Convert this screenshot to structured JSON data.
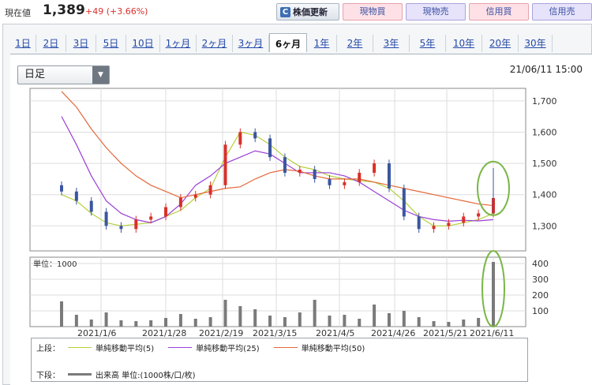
{
  "quote": {
    "label": "現在値",
    "price": "1,389",
    "change": "+49 (+3.66%)"
  },
  "buttons": {
    "refresh": "株価更新",
    "spot_buy": "現物買",
    "spot_sell": "現物売",
    "margin_buy": "信用買",
    "margin_sell": "信用売"
  },
  "period_tabs": [
    "1日",
    "2日",
    "3日",
    "5日",
    "10日",
    "1ヶ月",
    "2ヶ月",
    "3ヶ月",
    "6ヶ月",
    "1年",
    "2年",
    "3年",
    "5年",
    "10年",
    "20年",
    "30年"
  ],
  "active_tab": "6ヶ月",
  "interval_select": {
    "value": "日足"
  },
  "datetime": "21/06/11 15:00",
  "colors": {
    "up": "#d8302a",
    "down": "#3a56a0",
    "ma5": "#b6cf3c",
    "ma25": "#9b3fd6",
    "ma50": "#e4683a",
    "volume": "#7a7a7a",
    "highlight": "#7ab648"
  },
  "chart_data": [
    {
      "type": "candlestick",
      "y_ticks": [
        "1,700",
        "1,600",
        "1,500",
        "1,400",
        "1,300"
      ],
      "ylim": [
        1220,
        1740
      ],
      "x_ticks": [
        "2021/1/6",
        "2021/1/28",
        "2021/2/19",
        "2021/3/15",
        "2021/4/5",
        "2021/4/26",
        "2021/5/21",
        "2021/6/11"
      ],
      "series": [
        {
          "name": "単純移動平均(5)",
          "values": [
            1400,
            1380,
            1340,
            1310,
            1300,
            1305,
            1310,
            1330,
            1350,
            1390,
            1420,
            1520,
            1600,
            1590,
            1560,
            1520,
            1490,
            1480,
            1460,
            1450,
            1445,
            1440,
            1420,
            1380,
            1330,
            1300,
            1300,
            1310,
            1320,
            1340
          ]
        },
        {
          "name": "単純移動平均(25)",
          "values": [
            1650,
            1560,
            1460,
            1380,
            1340,
            1320,
            1310,
            1330,
            1370,
            1430,
            1460,
            1500,
            1520,
            1540,
            1530,
            1500,
            1470,
            1470,
            1470,
            1460,
            1440,
            1410,
            1380,
            1350,
            1330,
            1320,
            1315,
            1318,
            1316,
            1320
          ]
        },
        {
          "name": "単純移動平均(50)",
          "values": [
            1730,
            1680,
            1610,
            1550,
            1500,
            1460,
            1430,
            1410,
            1390,
            1400,
            1410,
            1420,
            1425,
            1450,
            1470,
            1480,
            1475,
            1460,
            1450,
            1450,
            1450,
            1440,
            1430,
            1420,
            1410,
            1400,
            1390,
            1380,
            1370,
            1365
          ]
        }
      ],
      "candles_close": [
        1410,
        1380,
        1345,
        1300,
        1290,
        1320,
        1330,
        1360,
        1390,
        1400,
        1430,
        1560,
        1600,
        1580,
        1520,
        1470,
        1480,
        1450,
        1430,
        1440,
        1470,
        1500,
        1420,
        1330,
        1290,
        1300,
        1310,
        1330,
        1340,
        1389
      ],
      "last_candle": {
        "open": 1340,
        "high": 1485,
        "low": 1338,
        "close": 1389
      }
    },
    {
      "type": "bar",
      "title": "単位：1000",
      "y_ticks": [
        "400",
        "300",
        "200",
        "100"
      ],
      "ylim": [
        0,
        440
      ],
      "values": [
        160,
        75,
        45,
        90,
        40,
        35,
        40,
        55,
        80,
        50,
        60,
        170,
        130,
        110,
        70,
        60,
        90,
        170,
        70,
        75,
        50,
        140,
        85,
        100,
        60,
        35,
        30,
        45,
        55,
        410
      ]
    }
  ],
  "legend": {
    "upper_label": "上段：",
    "lower_label": "下段：",
    "ma5": "単純移動平均(5)",
    "ma25": "単純移動平均(25)",
    "ma50": "単純移動平均(50)",
    "volume": "出来高 単位:(1000株/口/枚)"
  }
}
